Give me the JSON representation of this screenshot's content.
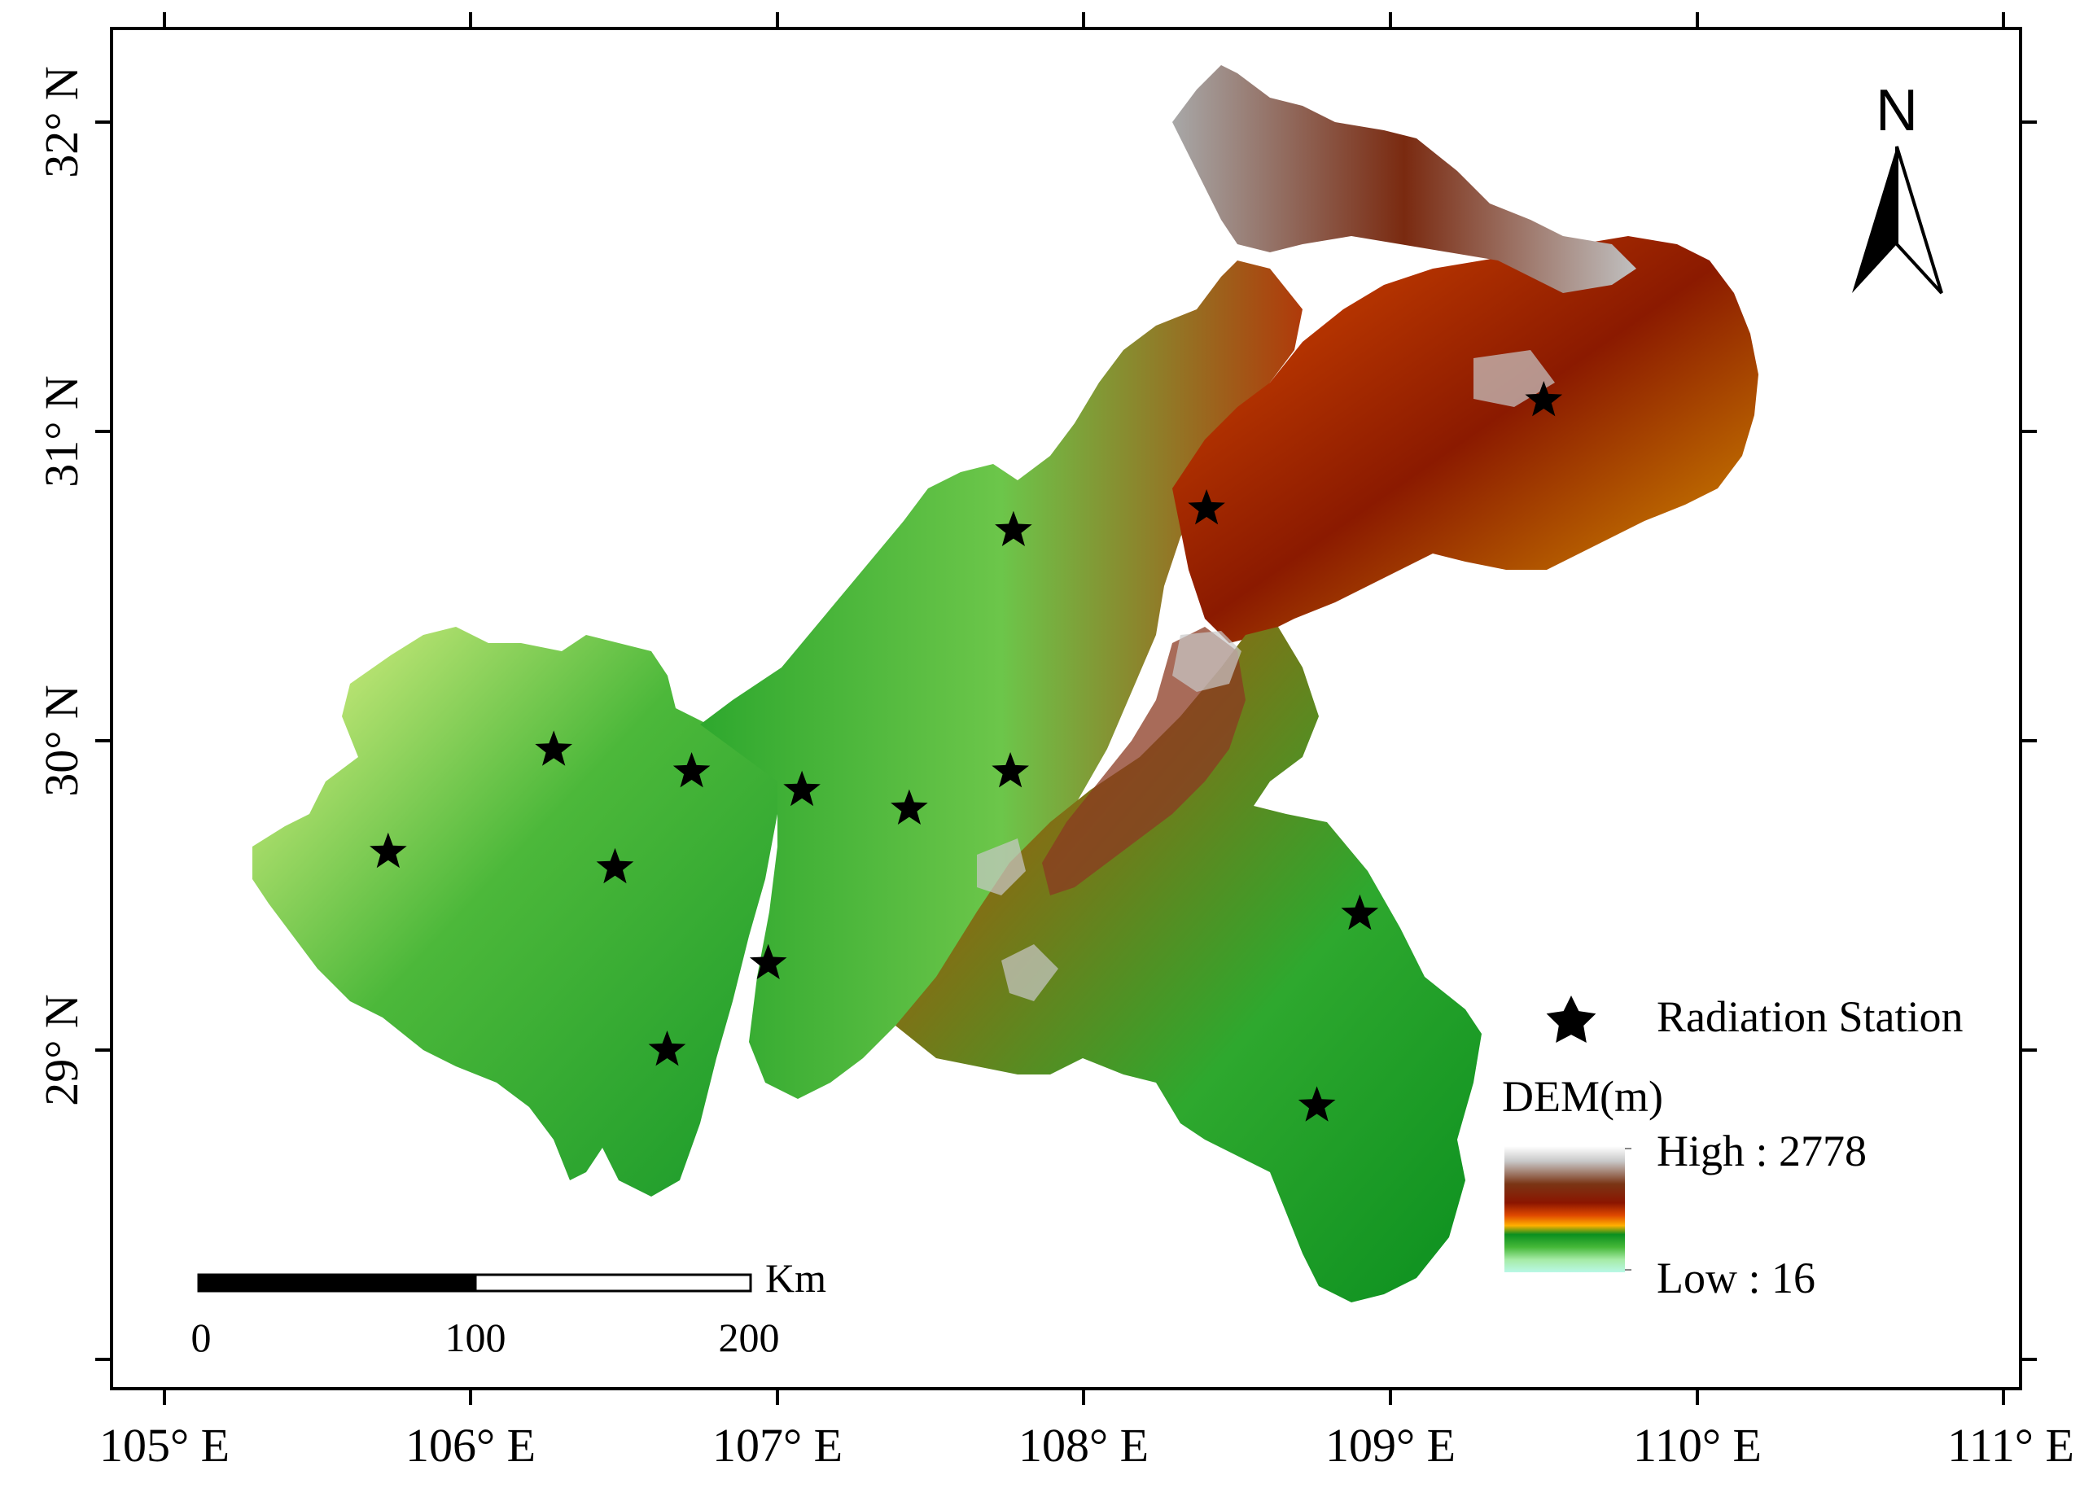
{
  "map": {
    "longitude_labels": [
      "105° E",
      "106° E",
      "107° E",
      "108° E",
      "109° E",
      "110° E",
      "111° E"
    ],
    "latitude_labels": [
      "32° N",
      "31° N",
      "30° N",
      "29° N"
    ],
    "north_arrow": {
      "label": "N",
      "icon": "north-arrow-icon"
    },
    "legend": {
      "station_label": "Radiation Station",
      "station_icon": "star-icon",
      "dem_title": "DEM(m)",
      "high_label": "High : 2778",
      "low_label": "Low : 16",
      "dem_colors": [
        "#ffffff",
        "#9b9b9b",
        "#7a2a10",
        "#8b1a00",
        "#d23b00",
        "#ffa500",
        "#0b8f1f",
        "#3fb630",
        "#8fe08f",
        "#b9f5d8"
      ]
    },
    "scale_bar": {
      "unit": "Km",
      "ticks": [
        "0",
        "100",
        "200"
      ]
    },
    "stations": [
      {
        "lon": 109.5,
        "lat": 31.1
      },
      {
        "lon": 108.4,
        "lat": 30.75
      },
      {
        "lon": 107.77,
        "lat": 30.68
      },
      {
        "lon": 106.27,
        "lat": 29.97
      },
      {
        "lon": 106.72,
        "lat": 29.9
      },
      {
        "lon": 107.08,
        "lat": 29.84
      },
      {
        "lon": 107.43,
        "lat": 29.78
      },
      {
        "lon": 107.76,
        "lat": 29.9
      },
      {
        "lon": 105.73,
        "lat": 29.64
      },
      {
        "lon": 106.47,
        "lat": 29.59
      },
      {
        "lon": 108.9,
        "lat": 29.44
      },
      {
        "lon": 106.97,
        "lat": 29.28
      },
      {
        "lon": 106.64,
        "lat": 29.0
      },
      {
        "lon": 108.76,
        "lat": 28.82
      }
    ]
  }
}
